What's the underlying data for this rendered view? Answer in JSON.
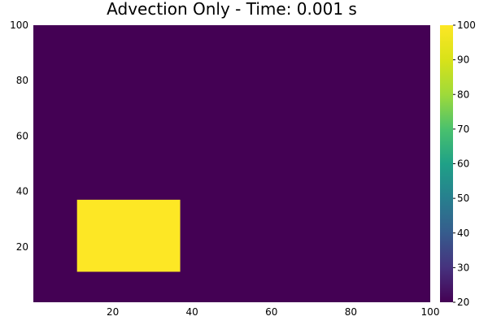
{
  "chart_data": {
    "type": "heatmap",
    "title": "Advection Only - Time: 0.001 s",
    "xlabel": "",
    "ylabel": "",
    "xlim": [
      0,
      100
    ],
    "ylim": [
      0,
      100
    ],
    "x_ticks": [
      20,
      40,
      60,
      80,
      100
    ],
    "y_ticks": [
      20,
      40,
      60,
      80,
      100
    ],
    "grid": false,
    "background_value": 20,
    "regions": [
      {
        "name": "hot-block",
        "x_range": [
          11,
          37
        ],
        "y_range": [
          11,
          37
        ],
        "value": 100
      }
    ],
    "colorbar": {
      "min": 20,
      "max": 100,
      "ticks": [
        20,
        30,
        40,
        50,
        60,
        70,
        80,
        90,
        100
      ],
      "colormap": "viridis"
    }
  }
}
